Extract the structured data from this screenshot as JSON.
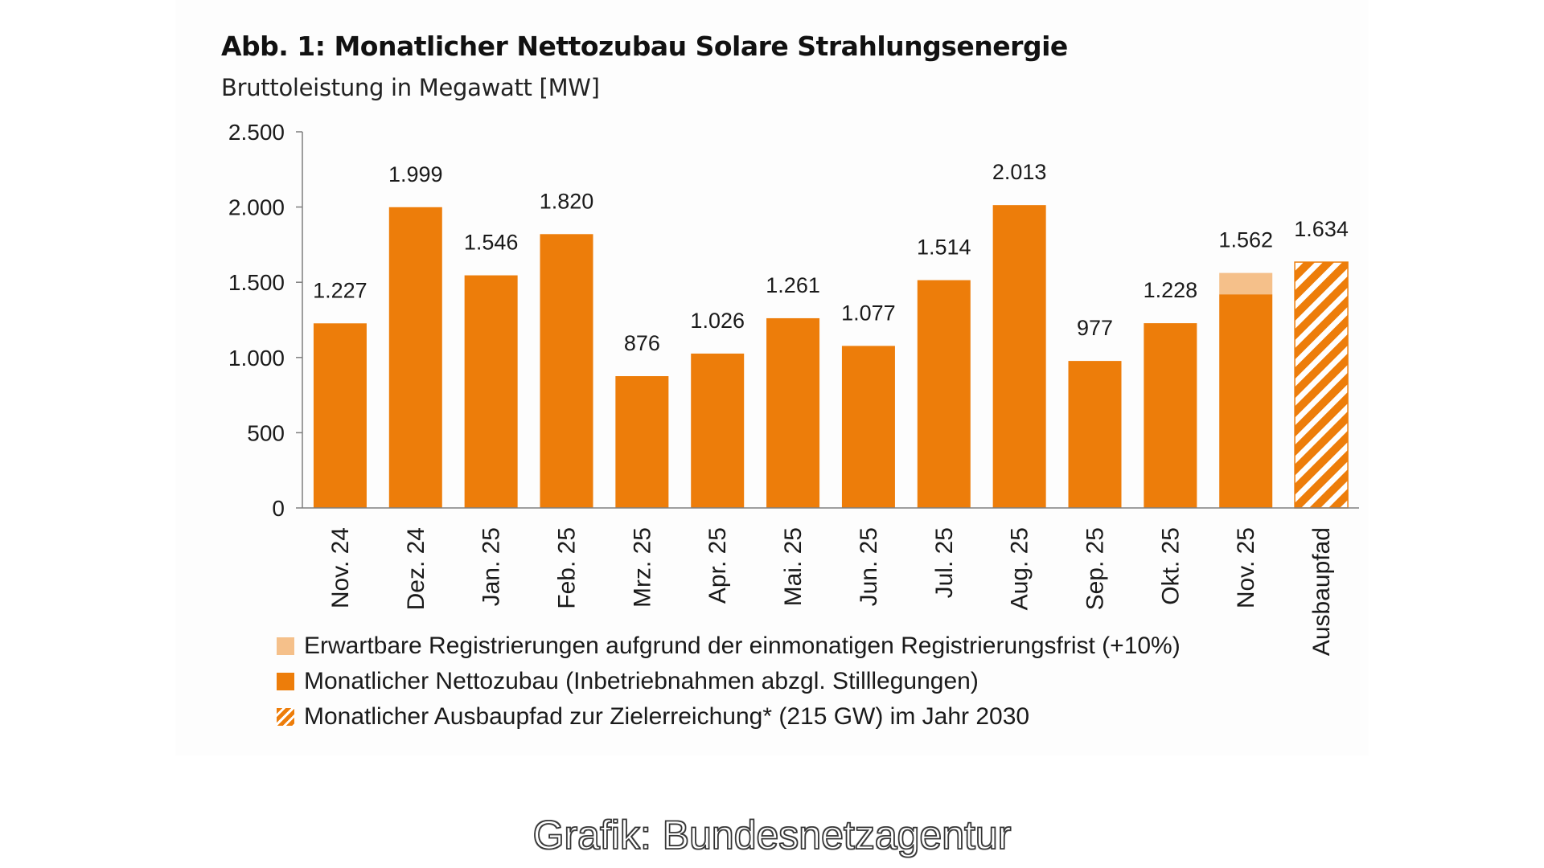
{
  "chart_data": {
    "type": "bar",
    "title": "Abb. 1: Monatlicher Nettozubau Solare Strahlungsenergie",
    "subtitle": "Bruttoleistung in Megawatt [MW]",
    "categories": [
      "Nov. 24",
      "Dez. 24",
      "Jan. 25",
      "Feb. 25",
      "Mrz. 25",
      "Apr. 25",
      "Mai. 25",
      "Jun. 25",
      "Jul. 25",
      "Aug. 25",
      "Sep. 25",
      "Okt. 25",
      "Nov. 25",
      "Ausbaupfad"
    ],
    "series": [
      {
        "name": "Monatlicher Nettozubau (Inbetriebnahmen abzgl. Stilllegungen)",
        "values": [
          1227,
          1999,
          1546,
          1820,
          876,
          1026,
          1261,
          1077,
          1514,
          2013,
          977,
          1228,
          1420,
          null
        ]
      },
      {
        "name": "Erwartbare Registrierungen aufgrund der einmonatigen Registrierungsfrist (+10%)",
        "values": [
          null,
          null,
          null,
          null,
          null,
          null,
          null,
          null,
          null,
          null,
          null,
          null,
          142,
          null
        ]
      },
      {
        "name": "Monatlicher Ausbaupfad zur Zielerreichung* (215 GW) im Jahr 2030",
        "values": [
          null,
          null,
          null,
          null,
          null,
          null,
          null,
          null,
          null,
          null,
          null,
          null,
          null,
          1634
        ]
      }
    ],
    "data_labels": [
      "1.227",
      "1.999",
      "1.546",
      "1.820",
      "876",
      "1.026",
      "1.261",
      "1.077",
      "1.514",
      "2.013",
      "977",
      "1.228",
      "1.562",
      "1.634"
    ],
    "totals": [
      1227,
      1999,
      1546,
      1820,
      876,
      1026,
      1261,
      1077,
      1514,
      2013,
      977,
      1228,
      1562,
      1634
    ],
    "y_ticks": [
      0,
      500,
      1000,
      1500,
      2000,
      2500
    ],
    "y_tick_labels": [
      "0",
      "500",
      "1.000",
      "1.500",
      "2.000",
      "2.500"
    ],
    "ylim": [
      0,
      2500
    ],
    "xlabel": "",
    "ylabel": "",
    "grid": false,
    "legend_position": "bottom-left",
    "colors": {
      "main": "#ed7d0a",
      "expected": "#f5c08a",
      "path": "#ed7d0a",
      "axis": "#7f7f7f"
    }
  },
  "legend": [
    {
      "label": "Erwartbare Registrierungen aufgrund der einmonatigen Registrierungsfrist (+10%)",
      "swatch": "expected"
    },
    {
      "label": "Monatlicher Nettozubau (Inbetriebnahmen abzgl. Stilllegungen)",
      "swatch": "main"
    },
    {
      "label": "Monatlicher Ausbaupfad zur Zielerreichung* (215 GW) im Jahr 2030",
      "swatch": "path"
    }
  ],
  "credit": "Grafik: Bundesnetzagentur"
}
